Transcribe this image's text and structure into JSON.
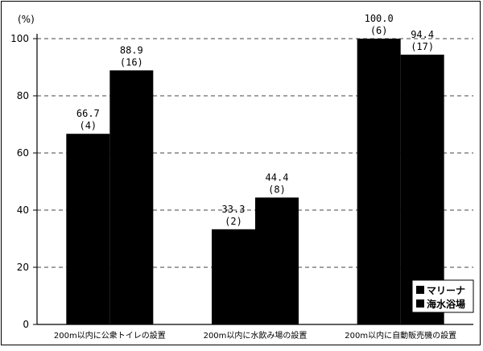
{
  "chart_data": {
    "type": "bar",
    "unit_label": "(%)",
    "ylim": [
      0,
      100
    ],
    "yticks": [
      0,
      20,
      40,
      60,
      80,
      100
    ],
    "grid": true,
    "legend_position": "bottom-right",
    "categories": [
      "200m以内に公衆トイレの設置",
      "200m以内に水飲み場の設置",
      "200m以内に自動販売機の設置"
    ],
    "series": [
      {
        "name": "マリーナ",
        "color": "#000000",
        "values": [
          66.7,
          33.3,
          100.0
        ],
        "value_labels": [
          "66.7",
          "33.3",
          "100.0"
        ],
        "counts": [
          "(4)",
          "(2)",
          "(6)"
        ]
      },
      {
        "name": "海水浴場",
        "color": "#000000",
        "values": [
          88.9,
          44.4,
          94.4
        ],
        "value_labels": [
          "88.9",
          "44.4",
          "94.4"
        ],
        "counts": [
          "(16)",
          "(8)",
          "(17)"
        ]
      }
    ]
  }
}
